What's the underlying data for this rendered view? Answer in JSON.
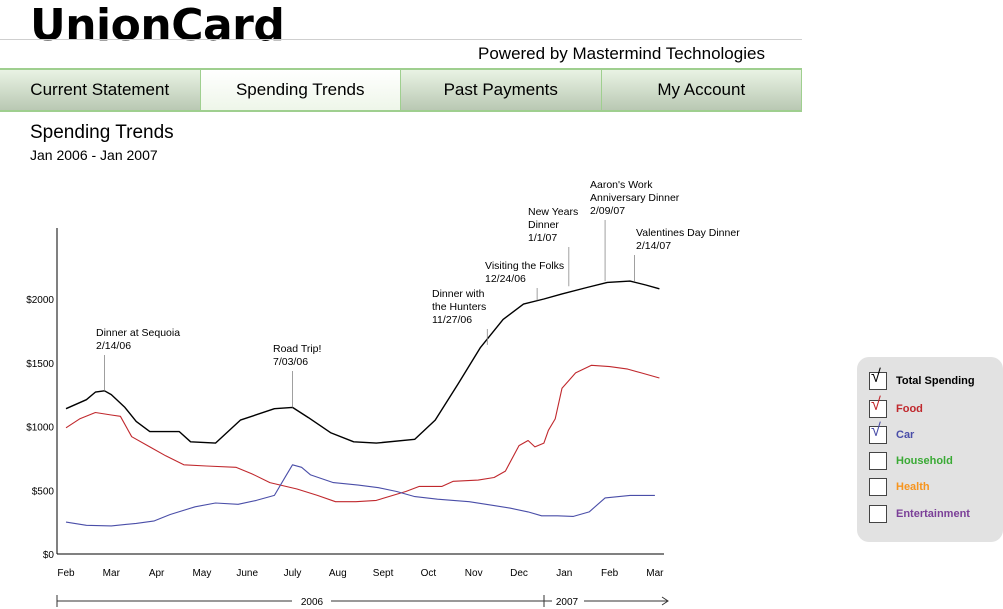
{
  "app": {
    "brand": "UnionCard",
    "powered_by": "Powered by Mastermind Technologies"
  },
  "nav": {
    "tabs": [
      {
        "label": "Current Statement",
        "active": false
      },
      {
        "label": "Spending Trends",
        "active": true
      },
      {
        "label": "Past Payments",
        "active": false
      },
      {
        "label": "My Account",
        "active": false
      }
    ]
  },
  "page": {
    "title": "Spending Trends",
    "subtitle": "Jan 2006 - Jan 2007"
  },
  "legend": {
    "items": [
      {
        "label": "Total Spending",
        "checked": true,
        "color": "#000000"
      },
      {
        "label": "Food",
        "checked": true,
        "color": "#c0282d"
      },
      {
        "label": "Car",
        "checked": true,
        "color": "#4a4ea8"
      },
      {
        "label": "Household",
        "checked": false,
        "color": "#3aaa35"
      },
      {
        "label": "Health",
        "checked": false,
        "color": "#f7941d"
      },
      {
        "label": "Entertainment",
        "checked": false,
        "color": "#7b3f98"
      }
    ]
  },
  "chart_data": {
    "type": "line",
    "x_labels": [
      "Feb",
      "Mar",
      "Apr",
      "May",
      "June",
      "July",
      "Aug",
      "Sept",
      "Oct",
      "Nov",
      "Dec",
      "Jan",
      "Feb",
      "Mar"
    ],
    "year_labels": [
      "2006",
      "2007"
    ],
    "y_ticks": [
      {
        "value": 0,
        "label": "$0"
      },
      {
        "value": 500,
        "label": "$500"
      },
      {
        "value": 1000,
        "label": "$1000"
      },
      {
        "value": 1500,
        "label": "$1500"
      },
      {
        "value": 2000,
        "label": "$2000"
      }
    ],
    "series": [
      {
        "name": "Total Spending",
        "color": "#000000",
        "points": [
          [
            0,
            1140
          ],
          [
            0.45,
            1210
          ],
          [
            0.65,
            1270
          ],
          [
            0.85,
            1280
          ],
          [
            1.0,
            1250
          ],
          [
            1.3,
            1150
          ],
          [
            1.55,
            1040
          ],
          [
            1.85,
            960
          ],
          [
            2.5,
            960
          ],
          [
            2.75,
            880
          ],
          [
            3.3,
            870
          ],
          [
            3.85,
            1050
          ],
          [
            4.6,
            1140
          ],
          [
            5.0,
            1150
          ],
          [
            5.35,
            1070
          ],
          [
            5.85,
            950
          ],
          [
            6.35,
            880
          ],
          [
            6.85,
            870
          ],
          [
            7.7,
            900
          ],
          [
            8.15,
            1050
          ],
          [
            8.65,
            1330
          ],
          [
            9.15,
            1620
          ],
          [
            9.65,
            1840
          ],
          [
            10.1,
            1960
          ],
          [
            10.55,
            2000
          ],
          [
            10.95,
            2040
          ],
          [
            11.5,
            2090
          ],
          [
            11.95,
            2130
          ],
          [
            12.45,
            2140
          ],
          [
            12.8,
            2110
          ],
          [
            13.1,
            2080
          ]
        ]
      },
      {
        "name": "Food",
        "color": "#c0282d",
        "points": [
          [
            0,
            990
          ],
          [
            0.3,
            1060
          ],
          [
            0.65,
            1110
          ],
          [
            1.0,
            1090
          ],
          [
            1.2,
            1080
          ],
          [
            1.45,
            920
          ],
          [
            1.85,
            840
          ],
          [
            2.2,
            770
          ],
          [
            2.6,
            700
          ],
          [
            3.1,
            690
          ],
          [
            3.75,
            680
          ],
          [
            4.1,
            630
          ],
          [
            4.5,
            560
          ],
          [
            5.1,
            510
          ],
          [
            5.55,
            460
          ],
          [
            5.95,
            410
          ],
          [
            6.4,
            410
          ],
          [
            6.85,
            420
          ],
          [
            7.5,
            490
          ],
          [
            7.8,
            530
          ],
          [
            8.3,
            530
          ],
          [
            8.55,
            570
          ],
          [
            9.1,
            580
          ],
          [
            9.45,
            600
          ],
          [
            9.7,
            650
          ],
          [
            10.0,
            850
          ],
          [
            10.2,
            890
          ],
          [
            10.35,
            840
          ],
          [
            10.55,
            870
          ],
          [
            10.65,
            970
          ],
          [
            10.8,
            1060
          ],
          [
            10.95,
            1300
          ],
          [
            11.25,
            1420
          ],
          [
            11.6,
            1480
          ],
          [
            12.0,
            1470
          ],
          [
            12.4,
            1450
          ],
          [
            12.7,
            1420
          ],
          [
            13.1,
            1380
          ]
        ]
      },
      {
        "name": "Car",
        "color": "#4a4ea8",
        "points": [
          [
            0,
            250
          ],
          [
            0.45,
            225
          ],
          [
            1.0,
            220
          ],
          [
            1.55,
            240
          ],
          [
            1.95,
            260
          ],
          [
            2.3,
            310
          ],
          [
            2.85,
            370
          ],
          [
            3.3,
            400
          ],
          [
            3.8,
            390
          ],
          [
            4.2,
            420
          ],
          [
            4.6,
            460
          ],
          [
            4.85,
            610
          ],
          [
            5.0,
            700
          ],
          [
            5.2,
            680
          ],
          [
            5.4,
            620
          ],
          [
            5.9,
            560
          ],
          [
            6.45,
            540
          ],
          [
            6.9,
            520
          ],
          [
            7.3,
            490
          ],
          [
            7.7,
            450
          ],
          [
            8.2,
            430
          ],
          [
            8.55,
            420
          ],
          [
            8.9,
            410
          ],
          [
            9.45,
            380
          ],
          [
            9.8,
            360
          ],
          [
            10.2,
            330
          ],
          [
            10.5,
            300
          ],
          [
            10.85,
            300
          ],
          [
            11.2,
            295
          ],
          [
            11.55,
            330
          ],
          [
            11.9,
            440
          ],
          [
            12.45,
            460
          ],
          [
            12.8,
            460
          ],
          [
            13.0,
            460
          ]
        ]
      }
    ],
    "annotations": [
      {
        "lines": [
          "Dinner at Sequoia",
          "2/14/06"
        ],
        "x": 0.85,
        "y": 1280,
        "anchor_x": 0.85
      },
      {
        "lines": [
          "Road Trip!",
          "7/03/06"
        ],
        "x": 5.0,
        "y": 1150,
        "anchor_x": 5.0
      },
      {
        "lines": [
          "Dinner with",
          "the Hunters",
          "11/27/06"
        ],
        "x": 9.3,
        "y": 1640,
        "anchor_x": 9.3
      },
      {
        "lines": [
          "Visiting the Folks",
          "12/24/06"
        ],
        "x": 10.4,
        "y": 1990,
        "anchor_x": 10.4
      },
      {
        "lines": [
          "New Years",
          "Dinner",
          "1/1/07"
        ],
        "x": 11.1,
        "y": 2100,
        "anchor_x": 11.1
      },
      {
        "lines": [
          "Aaron's Work",
          "Anniversary Dinner",
          "2/09/07"
        ],
        "x": 11.9,
        "y": 2140,
        "anchor_x": 11.9
      },
      {
        "lines": [
          "Valentines Day Dinner",
          "2/14/07"
        ],
        "x": 12.55,
        "y": 2140,
        "anchor_x": 12.55
      }
    ],
    "ylim": [
      0,
      2500
    ]
  }
}
